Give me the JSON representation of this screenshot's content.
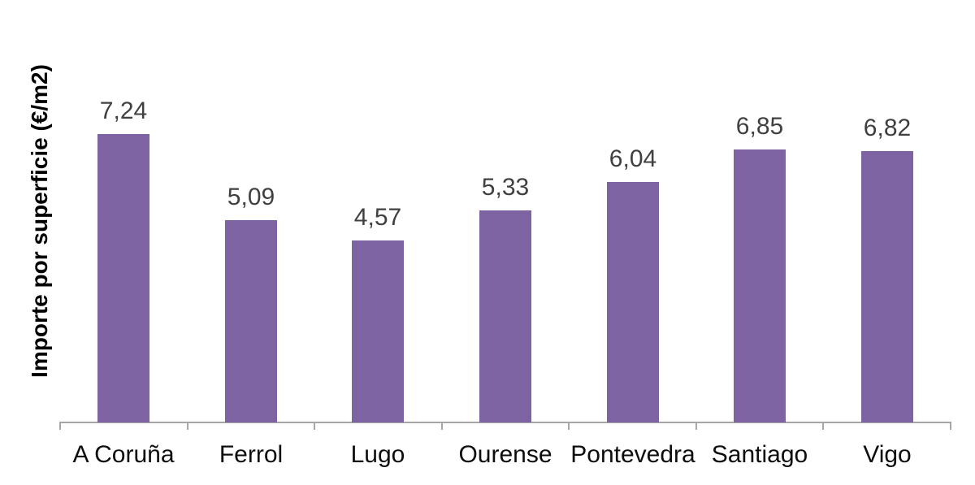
{
  "chart_data": {
    "type": "bar",
    "title": "",
    "xlabel": "",
    "ylabel": "Importe por superficie (€/m2)",
    "categories": [
      "A Coruña",
      "Ferrol",
      "Lugo",
      "Ourense",
      "Pontevedra",
      "Santiago",
      "Vigo"
    ],
    "values": [
      7.24,
      5.09,
      4.57,
      5.33,
      6.04,
      6.85,
      6.82
    ],
    "value_labels": [
      "7,24",
      "5,09",
      "4,57",
      "5,33",
      "6,04",
      "6,85",
      "6,82"
    ],
    "decimal_separator": ",",
    "series_name": "Importe por superficie",
    "grid": false,
    "legend": false,
    "y_axis_ticks_visible": false,
    "x_axis_visible": true,
    "bar_color": "#7D63A1",
    "value_label_color": "#404040",
    "category_label_color": "#0d0d0d",
    "axis_color": "#A6A6A6"
  }
}
